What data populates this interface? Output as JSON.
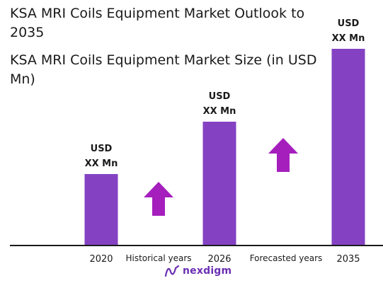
{
  "title": "KSA MRI Coils Equipment Market Outlook to 2035",
  "subtitle": "KSA MRI Coils Equipment Market Size (in USD Mn)",
  "brand": {
    "name": "nexdigm"
  },
  "colors": {
    "bar": "#8442c3",
    "arrow": "#a51fbd",
    "axis": "#1a1a1a"
  },
  "chart_data": {
    "type": "bar",
    "categories": [
      "2020",
      "2026",
      "2035"
    ],
    "values": [
      1.0,
      1.74,
      2.77
    ],
    "data_labels": [
      {
        "line1": "USD",
        "line2": "XX Mn"
      },
      {
        "line1": "USD",
        "line2": "XX Mn"
      },
      {
        "line1": "USD",
        "line2": "XX Mn"
      }
    ],
    "period_labels": [
      "Historical years",
      "Forecasted years"
    ],
    "trend_arrows": [
      {
        "period": "Historical years",
        "direction": "up"
      },
      {
        "period": "Forecasted years",
        "direction": "up"
      }
    ],
    "xlabel": "",
    "ylabel": "",
    "grid": false,
    "legend": "none"
  }
}
